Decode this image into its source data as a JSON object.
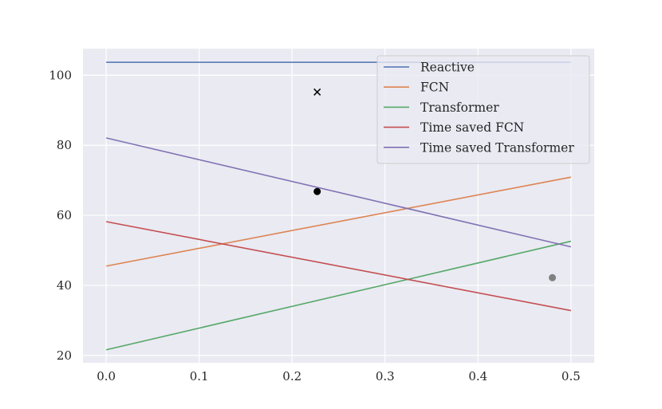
{
  "chart_data": {
    "type": "line",
    "xlim": [
      -0.025,
      0.525
    ],
    "ylim": [
      17.9,
      107.6
    ],
    "x_ticks": [
      0.0,
      0.1,
      0.2,
      0.3,
      0.4,
      0.5
    ],
    "x_tick_labels": [
      "0.0",
      "0.1",
      "0.2",
      "0.3",
      "0.4",
      "0.5"
    ],
    "y_ticks": [
      20,
      40,
      60,
      80,
      100
    ],
    "y_tick_labels": [
      "20",
      "40",
      "60",
      "80",
      "100"
    ],
    "grid": true,
    "legend_position": "top-right",
    "series": [
      {
        "name": "Reactive",
        "color": "#4c72b0",
        "x": [
          0.0,
          0.5
        ],
        "y": [
          103.7,
          103.7
        ]
      },
      {
        "name": "FCN",
        "color": "#dd8452",
        "x": [
          0.0,
          0.5
        ],
        "y": [
          45.5,
          70.9
        ]
      },
      {
        "name": "Transformer",
        "color": "#55a868",
        "x": [
          0.0,
          0.5
        ],
        "y": [
          21.6,
          52.6
        ]
      },
      {
        "name": "Time saved FCN",
        "color": "#c44e52",
        "x": [
          0.0,
          0.5
        ],
        "y": [
          58.2,
          32.8
        ]
      },
      {
        "name": "Time saved Transformer",
        "color": "#8172b3",
        "x": [
          0.0,
          0.5
        ],
        "y": [
          82.1,
          51.0
        ]
      }
    ],
    "markers": [
      {
        "kind": "cross",
        "x": 0.227,
        "y": 95.2,
        "color": "#000000"
      },
      {
        "kind": "circle",
        "x": 0.227,
        "y": 66.8,
        "color": "#000000"
      },
      {
        "kind": "circle",
        "x": 0.48,
        "y": 42.2,
        "color": "#808080"
      }
    ]
  }
}
